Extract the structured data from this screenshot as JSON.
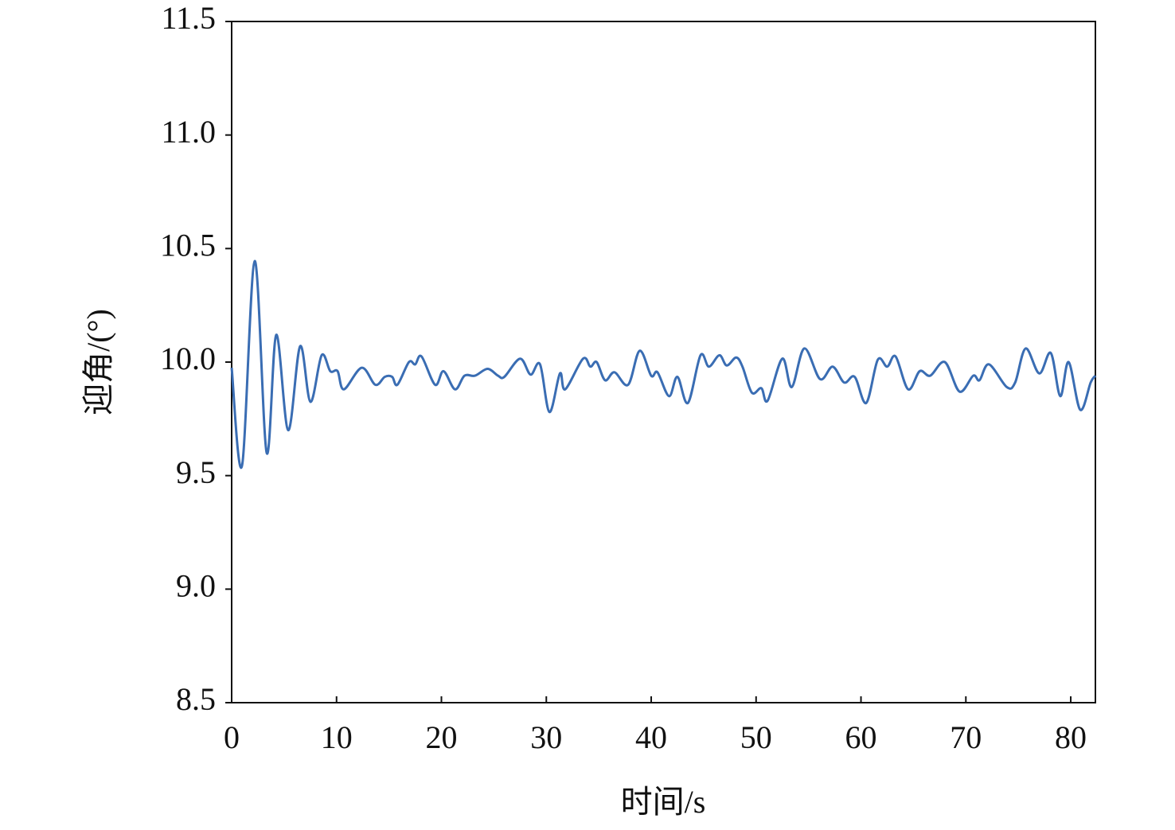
{
  "chart_data": {
    "type": "line",
    "xlabel": "时间/s",
    "ylabel": "迎角/(°)",
    "xlim": [
      0,
      82.35
    ],
    "ylim": [
      8.5,
      11.5
    ],
    "xticks": [
      0,
      10,
      20,
      30,
      40,
      50,
      60,
      70,
      80
    ],
    "yticks": [
      8.5,
      {
        "value": 9,
        "label": "9.0"
      },
      9.5,
      {
        "value": 10,
        "label": "10.0"
      },
      10.5,
      {
        "value": 11,
        "label": "11.0"
      },
      11.5
    ],
    "grid": false,
    "series": [
      {
        "color": "#3a6db3",
        "x": [
          0,
          0.99,
          2.2,
          3.34,
          4.25,
          5.39,
          6.53,
          7.51,
          8.58,
          9.4,
          10.1,
          10.7,
          12.4,
          13.7,
          14.6,
          15.3,
          15.8,
          16.9,
          17.5,
          18.1,
          19.4,
          20.2,
          21.3,
          22.2,
          23.2,
          24.4,
          25.4,
          26.0,
          27.5,
          28.5,
          29.4,
          30.3,
          31.3,
          31.8,
          33.5,
          34.2,
          34.8,
          35.6,
          36.5,
          37.8,
          38.9,
          40.0,
          40.6,
          41.7,
          42.5,
          43.5,
          44.7,
          45.5,
          46.5,
          47.2,
          48.1,
          48.7,
          49.6,
          50.5,
          51.1,
          52.5,
          53.4,
          54.6,
          56.1,
          57.3,
          58.4,
          59.4,
          60.5,
          61.6,
          62.5,
          63.3,
          64.5,
          65.6,
          66.6,
          68.0,
          69.4,
          70.7,
          71.3,
          72.2,
          73.9,
          74.7,
          75.7,
          77.0,
          78.1,
          79.0,
          79.8,
          80.9,
          81.9,
          82.35
        ],
        "values": [
          9.975,
          9.544,
          10.445,
          9.6,
          10.12,
          9.7,
          10.07,
          9.825,
          10.03,
          9.96,
          9.96,
          9.88,
          9.975,
          9.9,
          9.935,
          9.935,
          9.9,
          10.0,
          9.99,
          10.025,
          9.9,
          9.96,
          9.88,
          9.94,
          9.94,
          9.97,
          9.94,
          9.935,
          10.015,
          9.945,
          9.99,
          9.78,
          9.95,
          9.88,
          10.015,
          9.98,
          10.0,
          9.92,
          9.955,
          9.9,
          10.05,
          9.94,
          9.955,
          9.85,
          9.935,
          9.82,
          10.03,
          9.98,
          10.03,
          9.985,
          10.02,
          9.98,
          9.865,
          9.885,
          9.83,
          10.015,
          9.89,
          10.06,
          9.925,
          9.98,
          9.91,
          9.935,
          9.82,
          10.01,
          9.98,
          10.025,
          9.88,
          9.96,
          9.94,
          10.0,
          9.87,
          9.94,
          9.92,
          9.99,
          9.89,
          9.91,
          10.06,
          9.95,
          10.04,
          9.85,
          10.0,
          9.79,
          9.91,
          9.94
        ]
      }
    ]
  }
}
